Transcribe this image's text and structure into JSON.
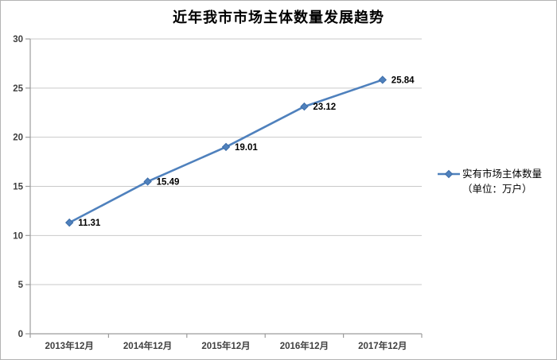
{
  "chart_data": {
    "type": "line",
    "title": "近年我市市场主体数量发展趋势",
    "categories": [
      "2013年12月",
      "2014年12月",
      "2015年12月",
      "2016年12月",
      "2017年12月"
    ],
    "series": [
      {
        "name": "实有市场主体数量（单位：万户）",
        "values": [
          11.31,
          15.49,
          19.01,
          23.12,
          25.84
        ],
        "labels": [
          "11.31",
          "15.49",
          "19.01",
          "23.12",
          "25.84"
        ]
      }
    ],
    "xlabel": "",
    "ylabel": "",
    "ylim": [
      0,
      30
    ],
    "yticks": [
      0,
      5,
      10,
      15,
      20,
      25,
      30
    ],
    "grid": true,
    "legend_position": "right",
    "marker": "diamond"
  },
  "legend": {
    "line1": "实有市场主体数量",
    "line2": "（单位：万户）"
  },
  "colors": {
    "series_line": "#4f81bd",
    "marker_fill": "#4f81bd",
    "marker_stroke": "#3d6da8",
    "gridline": "#c9c9c9",
    "axis": "#9c9c9c",
    "tick_label": "#404040",
    "data_label": "#000000",
    "frame_border": "#b3b3b3",
    "background": "#ffffff"
  }
}
